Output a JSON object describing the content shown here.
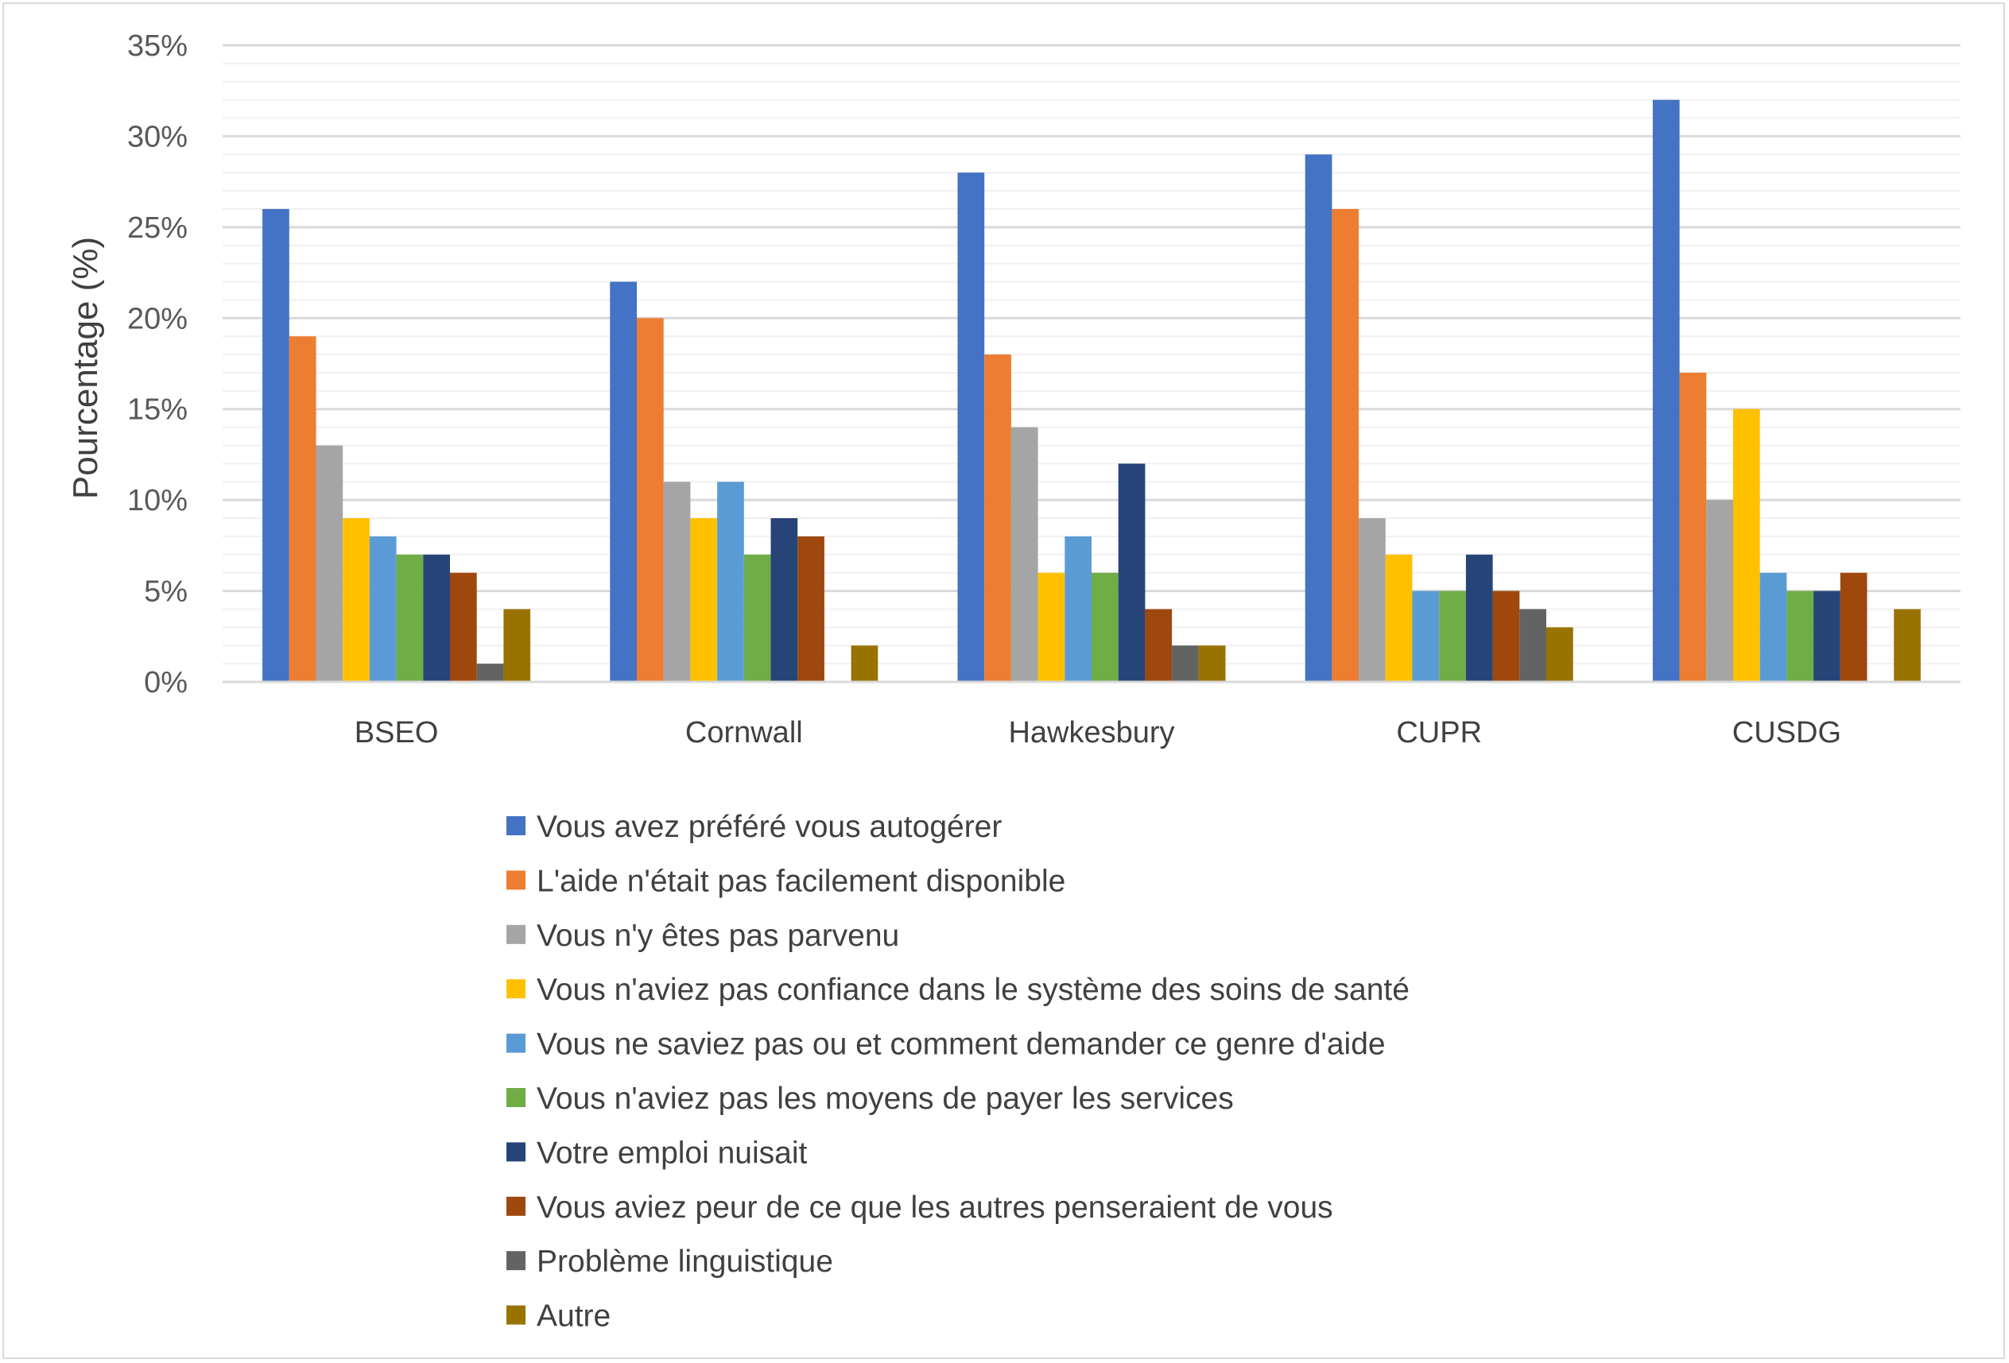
{
  "chart_data": {
    "type": "bar",
    "title": "",
    "xlabel": "",
    "ylabel": "Pourcentage (%)",
    "ylim": [
      0,
      35
    ],
    "ytick_values": [
      0,
      5,
      10,
      15,
      20,
      25,
      30,
      35
    ],
    "ytick_labels": [
      "0%",
      "5%",
      "10%",
      "15%",
      "20%",
      "25%",
      "30%",
      "35%"
    ],
    "grid": "major and minor horizontal",
    "legend_position": "bottom",
    "categories": [
      "BSEO",
      "Cornwall",
      "Hawkesbury",
      "CUPR",
      "CUSDG"
    ],
    "series": [
      {
        "name": "Vous avez préféré vous autogérer",
        "color": "#4472c4",
        "values": [
          26,
          22,
          28,
          29,
          32
        ]
      },
      {
        "name": "L'aide n'était pas facilement disponible",
        "color": "#ed7d31",
        "values": [
          19,
          20,
          18,
          26,
          17
        ]
      },
      {
        "name": "Vous n'y êtes pas parvenu",
        "color": "#a5a5a5",
        "values": [
          13,
          11,
          14,
          9,
          10
        ]
      },
      {
        "name": "Vous n'aviez pas confiance dans le système des soins de santé",
        "color": "#ffc000",
        "values": [
          9,
          9,
          6,
          7,
          15
        ]
      },
      {
        "name": "Vous ne saviez pas ou et comment demander ce genre d'aide",
        "color": "#5b9bd5",
        "values": [
          8,
          11,
          8,
          5,
          6
        ]
      },
      {
        "name": "Vous n'aviez pas les moyens de payer les services",
        "color": "#70ad47",
        "values": [
          7,
          7,
          6,
          5,
          5
        ]
      },
      {
        "name": "Votre emploi nuisait",
        "color": "#264478",
        "values": [
          7,
          9,
          12,
          7,
          5
        ]
      },
      {
        "name": "Vous aviez peur de ce que les autres penseraient de vous",
        "color": "#9e480e",
        "values": [
          6,
          8,
          4,
          5,
          6
        ]
      },
      {
        "name": "Problème linguistique",
        "color": "#636363",
        "values": [
          1,
          0,
          2,
          4,
          0
        ]
      },
      {
        "name": "Autre",
        "color": "#997300",
        "values": [
          4,
          2,
          2,
          3,
          4
        ]
      }
    ]
  }
}
